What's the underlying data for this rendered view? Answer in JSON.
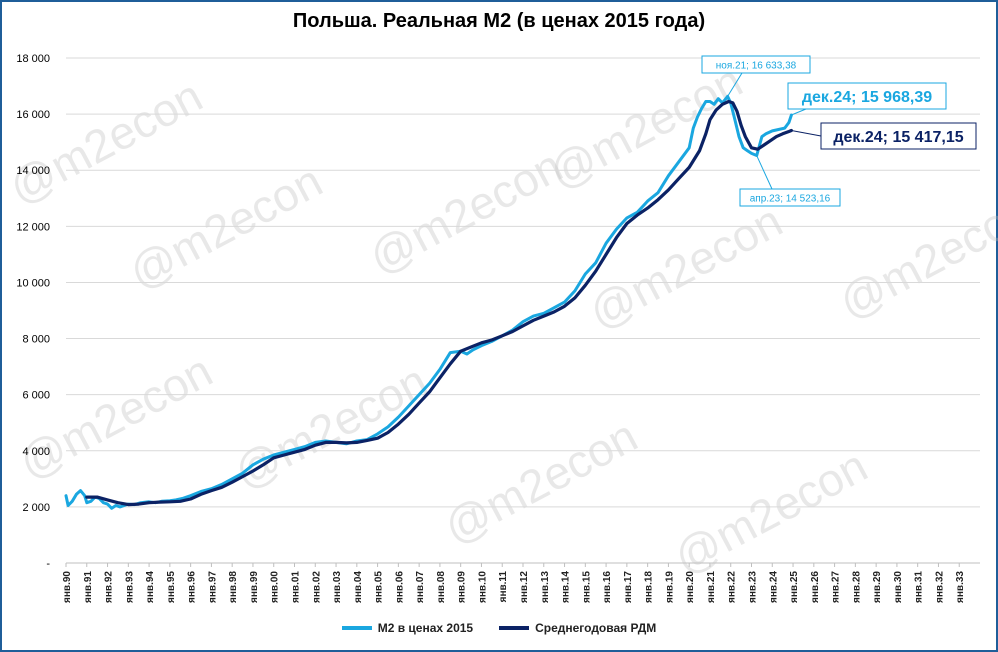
{
  "watermark": "@m2econ",
  "chart_data": {
    "type": "line",
    "title": "Польша. Реальная М2 (в ценах 2015 года)",
    "xlabel": "",
    "ylabel": "",
    "ylim": [
      0,
      18000
    ],
    "xlim": [
      1990,
      2034
    ],
    "y_ticks": [
      0,
      2000,
      4000,
      6000,
      8000,
      10000,
      12000,
      14000,
      16000,
      18000
    ],
    "y_tick_labels": [
      "-",
      "2 000",
      "4 000",
      "6 000",
      "8 000",
      "10 000",
      "12 000",
      "14 000",
      "16 000",
      "18 000"
    ],
    "x_tick_labels": [
      "янв.90",
      "янв.91",
      "янв.92",
      "янв.93",
      "янв.94",
      "янв.95",
      "янв.96",
      "янв.97",
      "янв.98",
      "янв.99",
      "янв.00",
      "янв.01",
      "янв.02",
      "янв.03",
      "янв.04",
      "янв.05",
      "янв.06",
      "янв.07",
      "янв.08",
      "янв.09",
      "янв.10",
      "янв.11",
      "янв.12",
      "янв.13",
      "янв.14",
      "янв.15",
      "янв.16",
      "янв.17",
      "янв.18",
      "янв.19",
      "янв.20",
      "янв.21",
      "янв.22",
      "янв.23",
      "янв.24",
      "янв.25",
      "янв.26",
      "янв.27",
      "янв.28",
      "янв.29",
      "янв.30",
      "янв.31",
      "янв.32",
      "янв.33"
    ],
    "grid": "horizontal",
    "legend_position": "bottom",
    "series": [
      {
        "name": "М2 в ценах 2015",
        "color": "#1aa7e0",
        "x": [
          1990.0,
          1990.1,
          1990.3,
          1990.5,
          1990.7,
          1990.9,
          1991.0,
          1991.2,
          1991.4,
          1991.6,
          1991.8,
          1992.0,
          1992.2,
          1992.4,
          1992.6,
          1992.8,
          1993.0,
          1993.3,
          1993.6,
          1994.0,
          1994.3,
          1994.6,
          1995.0,
          1995.3,
          1995.6,
          1996.0,
          1996.5,
          1997.0,
          1997.5,
          1998.0,
          1998.5,
          1999.0,
          1999.5,
          2000.0,
          2000.5,
          2001.0,
          2001.5,
          2002.0,
          2002.5,
          2003.0,
          2003.5,
          2004.0,
          2004.5,
          2005.0,
          2005.5,
          2006.0,
          2006.5,
          2007.0,
          2007.5,
          2008.0,
          2008.5,
          2009.0,
          2009.3,
          2009.6,
          2010.0,
          2010.5,
          2011.0,
          2011.5,
          2012.0,
          2012.5,
          2013.0,
          2013.5,
          2014.0,
          2014.5,
          2015.0,
          2015.5,
          2016.0,
          2016.5,
          2017.0,
          2017.5,
          2018.0,
          2018.5,
          2019.0,
          2019.5,
          2020.0,
          2020.2,
          2020.4,
          2020.6,
          2020.8,
          2021.0,
          2021.2,
          2021.4,
          2021.6,
          2021.85,
          2022.0,
          2022.2,
          2022.4,
          2022.6,
          2022.8,
          2023.0,
          2023.25,
          2023.5,
          2023.7,
          2024.0,
          2024.3,
          2024.6,
          2024.8,
          2024.92
        ],
        "values": [
          2400,
          2050,
          2200,
          2450,
          2580,
          2400,
          2150,
          2200,
          2350,
          2300,
          2150,
          2100,
          1950,
          2050,
          2000,
          2050,
          2100,
          2080,
          2150,
          2180,
          2150,
          2200,
          2220,
          2250,
          2300,
          2400,
          2550,
          2650,
          2800,
          3000,
          3200,
          3500,
          3700,
          3850,
          3950,
          4050,
          4150,
          4300,
          4350,
          4300,
          4250,
          4350,
          4400,
          4600,
          4850,
          5200,
          5600,
          6000,
          6400,
          6900,
          7500,
          7550,
          7450,
          7600,
          7750,
          7900,
          8100,
          8300,
          8600,
          8800,
          8900,
          9100,
          9300,
          9700,
          10300,
          10700,
          11400,
          11900,
          12300,
          12500,
          12900,
          13200,
          13800,
          14300,
          14800,
          15500,
          15900,
          16200,
          16450,
          16450,
          16350,
          16550,
          16400,
          16633,
          16400,
          15800,
          15200,
          14800,
          14700,
          14600,
          14523,
          15200,
          15300,
          15400,
          15450,
          15500,
          15700,
          15968
        ]
      },
      {
        "name": "Среднегодовая РДМ",
        "color": "#0b2265",
        "x": [
          1991.0,
          1991.5,
          1992.0,
          1992.5,
          1993.0,
          1993.5,
          1994.0,
          1994.5,
          1995.0,
          1995.5,
          1996.0,
          1996.5,
          1997.0,
          1997.5,
          1998.0,
          1998.5,
          1999.0,
          1999.5,
          2000.0,
          2000.5,
          2001.0,
          2001.5,
          2002.0,
          2002.5,
          2003.0,
          2003.5,
          2004.0,
          2004.5,
          2005.0,
          2005.5,
          2006.0,
          2006.5,
          2007.0,
          2007.5,
          2008.0,
          2008.5,
          2009.0,
          2009.5,
          2010.0,
          2010.5,
          2011.0,
          2011.5,
          2012.0,
          2012.5,
          2013.0,
          2013.5,
          2014.0,
          2014.5,
          2015.0,
          2015.5,
          2016.0,
          2016.5,
          2017.0,
          2017.5,
          2018.0,
          2018.5,
          2019.0,
          2019.5,
          2020.0,
          2020.5,
          2020.8,
          2021.0,
          2021.3,
          2021.6,
          2021.9,
          2022.1,
          2022.3,
          2022.5,
          2022.7,
          2023.0,
          2023.3,
          2023.6,
          2023.9,
          2024.2,
          2024.5,
          2024.8,
          2024.92
        ],
        "values": [
          2350,
          2350,
          2250,
          2150,
          2080,
          2100,
          2150,
          2170,
          2180,
          2200,
          2280,
          2450,
          2580,
          2700,
          2880,
          3080,
          3280,
          3500,
          3750,
          3850,
          3950,
          4050,
          4200,
          4300,
          4300,
          4280,
          4300,
          4370,
          4450,
          4650,
          4950,
          5300,
          5700,
          6100,
          6600,
          7100,
          7550,
          7700,
          7850,
          7950,
          8100,
          8250,
          8450,
          8650,
          8800,
          8950,
          9150,
          9450,
          9900,
          10400,
          11000,
          11600,
          12100,
          12400,
          12650,
          12950,
          13300,
          13700,
          14100,
          14700,
          15300,
          15800,
          16150,
          16350,
          16450,
          16400,
          16100,
          15600,
          15200,
          14800,
          14750,
          14900,
          15050,
          15200,
          15300,
          15380,
          15417
        ]
      }
    ],
    "annotations": [
      {
        "text": "ноя.21; 16 633,38",
        "x": 2021.85,
        "y": 16633,
        "series": 0,
        "style": "small"
      },
      {
        "text": "апр.23; 14 523,16",
        "x": 2023.25,
        "y": 14523,
        "series": 0,
        "style": "small"
      },
      {
        "text": "дек.24; 15 968,39",
        "x": 2024.92,
        "y": 15968,
        "series": 0,
        "style": "large"
      },
      {
        "text": "дек.24; 15 417,15",
        "x": 2024.92,
        "y": 15417,
        "series": 1,
        "style": "large"
      }
    ]
  }
}
